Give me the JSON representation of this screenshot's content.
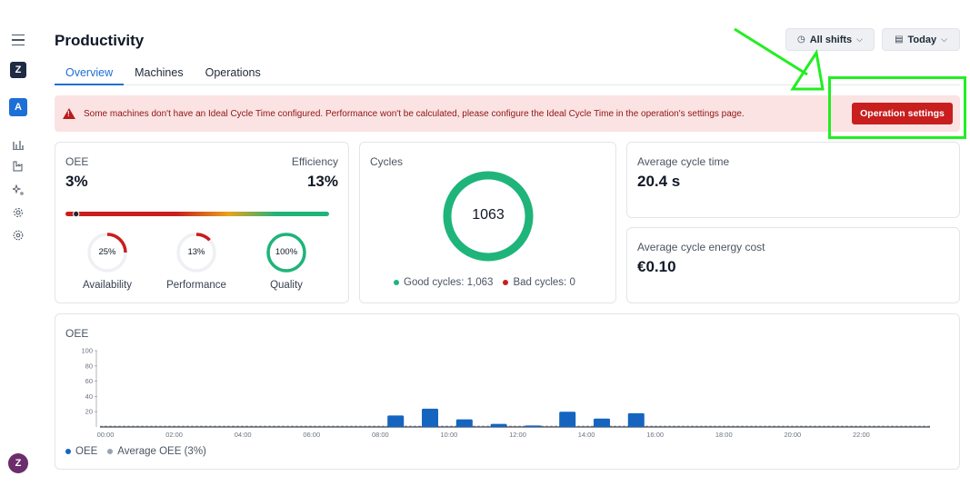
{
  "app": {
    "title": "Productivity"
  },
  "sidebar": {
    "logo": "Z",
    "user_initial": "A",
    "avatar_initial": "Z"
  },
  "tabs": [
    {
      "label": "Overview",
      "active": true
    },
    {
      "label": "Machines",
      "active": false
    },
    {
      "label": "Operations",
      "active": false
    }
  ],
  "header": {
    "shift_filter": "All shifts",
    "date_filter": "Today"
  },
  "alert": {
    "message": "Some machines don't have an Ideal Cycle Time configured. Performance won't be calculated, please configure the Ideal Cycle Time in the operation's settings page.",
    "button_label": "Operation settings"
  },
  "oee_card": {
    "oee_label": "OEE",
    "oee_value": "3%",
    "efficiency_label": "Efficiency",
    "efficiency_value": "13%",
    "oee_fraction": 0.03,
    "gauges": [
      {
        "label": "Availability",
        "value_text": "25%",
        "value": 0.25,
        "color": "#c81e1e"
      },
      {
        "label": "Performance",
        "value_text": "13%",
        "value": 0.13,
        "color": "#c81e1e"
      },
      {
        "label": "Quality",
        "value_text": "100%",
        "value": 1.0,
        "color": "#1fb47a"
      }
    ]
  },
  "cycles_card": {
    "label": "Cycles",
    "total": "1063",
    "good_label": "Good cycles: 1,063",
    "bad_label": "Bad cycles: 0",
    "good_color": "#1fb47a",
    "bad_color": "#c81e1e"
  },
  "avg_cycle_card": {
    "label": "Average cycle time",
    "value": "20.4 s"
  },
  "energy_card": {
    "label": "Average cycle energy cost",
    "value": "€0.10"
  },
  "chart_data": {
    "type": "bar",
    "title": "OEE",
    "ylabel": "",
    "ylim": [
      0,
      100
    ],
    "y_ticks": [
      "100",
      "80",
      "60",
      "40",
      "20"
    ],
    "x_ticks": [
      "00:00",
      "02:00",
      "04:00",
      "06:00",
      "08:00",
      "10:00",
      "12:00",
      "14:00",
      "16:00",
      "18:00",
      "20:00",
      "22:00"
    ],
    "bar_color": "#1565c0",
    "series": [
      {
        "name": "OEE",
        "x": [
          8,
          9,
          10,
          11,
          12,
          13,
          14,
          15
        ],
        "values": [
          15,
          24,
          10,
          4,
          2,
          20,
          11,
          18
        ]
      }
    ],
    "legend": [
      {
        "label": "OEE",
        "color": "#1565c0"
      },
      {
        "label": "Average OEE (3%)",
        "color": "#9ca3af"
      }
    ],
    "legend_position": "bottom-left"
  }
}
